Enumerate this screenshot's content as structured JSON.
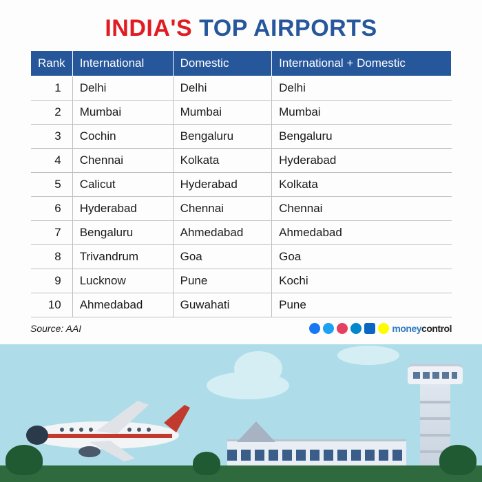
{
  "title": {
    "word1": "INDIA'S",
    "word2": "TOP AIRPORTS",
    "color1": "#e11b22",
    "color2": "#27579b",
    "fontsize": 34
  },
  "table": {
    "header_bg": "#27579b",
    "header_fg": "#ffffff",
    "row_border": "#bfbfbf",
    "fontsize": 17,
    "columns": [
      "Rank",
      "International",
      "Domestic",
      "International + Domestic"
    ],
    "rows": [
      [
        "1",
        "Delhi",
        "Delhi",
        "Delhi"
      ],
      [
        "2",
        "Mumbai",
        "Mumbai",
        "Mumbai"
      ],
      [
        "3",
        "Cochin",
        "Bengaluru",
        "Bengaluru"
      ],
      [
        "4",
        "Chennai",
        "Kolkata",
        "Hyderabad"
      ],
      [
        "5",
        "Calicut",
        "Hyderabad",
        "Kolkata"
      ],
      [
        "6",
        "Hyderabad",
        "Chennai",
        "Chennai"
      ],
      [
        "7",
        "Bengaluru",
        "Ahmedabad",
        "Ahmedabad"
      ],
      [
        "8",
        "Trivandrum",
        "Goa",
        "Goa"
      ],
      [
        "9",
        "Lucknow",
        "Pune",
        "Kochi"
      ],
      [
        "10",
        "Ahmedabad",
        "Guwahati",
        "Pune"
      ]
    ]
  },
  "source": "Source: AAI",
  "social_colors": [
    "#1877f2",
    "#1da1f2",
    "#e4405f",
    "#0088cc",
    "#0a66c2",
    "#fffc00"
  ],
  "brand": {
    "part1": "money",
    "part2": "control"
  },
  "illustration": {
    "sky_color": "#aedde9",
    "cloud_color": "#d5eef4",
    "grass_color": "#2f6a3f",
    "bush_color": "#1f5a33",
    "terminal_color": "#e9eef4",
    "tower_color": "#dfe6ee",
    "plane_body": "#f3f4f6",
    "plane_stripe": "#c23a2e",
    "plane_tail": "#c23a2e"
  }
}
